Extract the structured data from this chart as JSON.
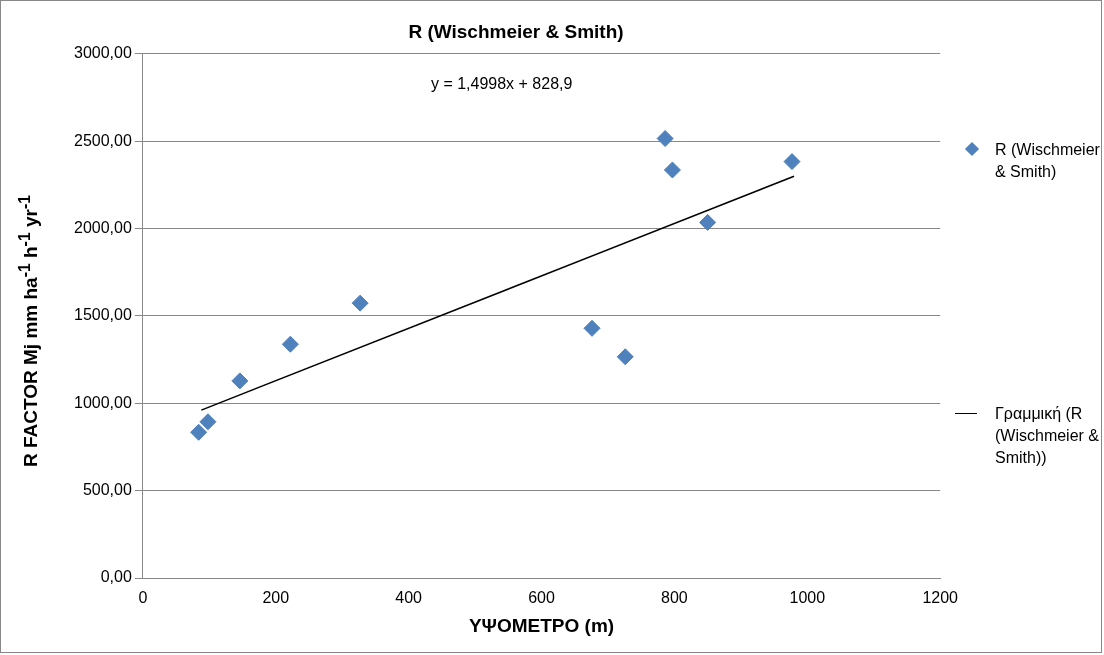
{
  "chart_data": {
    "type": "scatter",
    "title": "R (Wischmeier & Smith)",
    "xlabel": "ΥΨΟΜΕΤΡΟ (m)",
    "ylabel": "R FACTOR Mj mm ha$^{-1}$ h$^{-1}$ yr$^{-1}$",
    "annotations": [
      "y = 1,4998x + 828,9"
    ],
    "series": [
      {
        "name": "R (Wischmeier & Smith)",
        "type": "scatter",
        "color": "#4f81bd",
        "marker": "diamond",
        "x": [
          84,
          98,
          146,
          222,
          327,
          676,
          726,
          786,
          797,
          850,
          977
        ],
        "values": [
          834,
          894,
          1128,
          1338,
          1573,
          1429,
          1266,
          2515,
          2335,
          2035,
          2383
        ]
      },
      {
        "name": "Γραμμική (R (Wischmeier & Smith))",
        "type": "line",
        "color": "#000000",
        "marker": "none",
        "line_style": "solid",
        "x": [
          88,
          980
        ],
        "values": [
          961,
          2299
        ]
      }
    ],
    "xlim": [
      0,
      1200
    ],
    "xticks": [
      0,
      200,
      400,
      600,
      800,
      1000,
      1200
    ],
    "ylim": [
      0,
      3000
    ],
    "yticks": [
      {
        "value": 0,
        "label": "0,00"
      },
      {
        "value": 500,
        "label": "500,00"
      },
      {
        "value": 1000,
        "label": "1000,00"
      },
      {
        "value": 1500,
        "label": "1500,00"
      },
      {
        "value": 2000,
        "label": "2000,00"
      },
      {
        "value": 2500,
        "label": "2500,00"
      },
      {
        "value": 3000,
        "label": "3000,00"
      }
    ],
    "grid": "y",
    "legend": "right"
  }
}
